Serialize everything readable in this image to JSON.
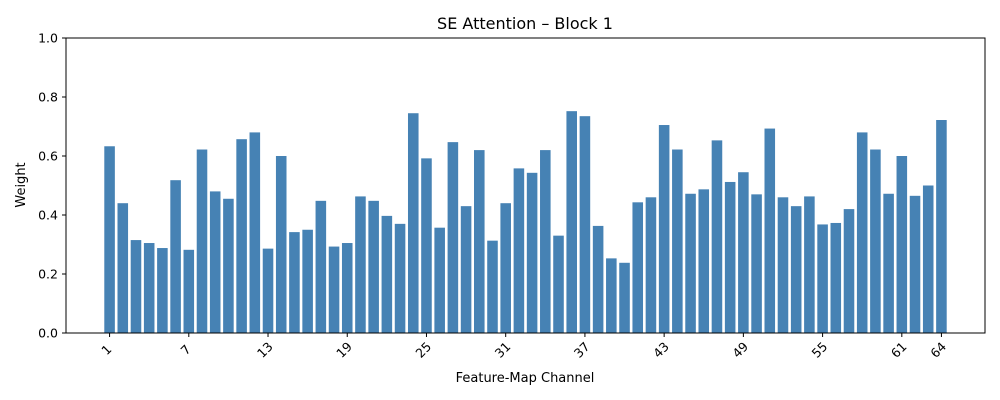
{
  "chart_data": {
    "type": "bar",
    "title": "SE Attention – Block 1",
    "xlabel": "Feature-Map Channel",
    "ylabel": "Weight",
    "ylim": [
      0,
      1.0
    ],
    "yticks": [
      "0.0",
      "0.2",
      "0.4",
      "0.6",
      "0.8",
      "1.0"
    ],
    "xticks": [
      1,
      7,
      13,
      19,
      25,
      31,
      37,
      43,
      49,
      55,
      61,
      64
    ],
    "xtick_rotation": 45,
    "grid": false,
    "bar_color": "#4682b4",
    "x": [
      1,
      2,
      3,
      4,
      5,
      6,
      7,
      8,
      9,
      10,
      11,
      12,
      13,
      14,
      15,
      16,
      17,
      18,
      19,
      20,
      21,
      22,
      23,
      24,
      25,
      26,
      27,
      28,
      29,
      30,
      31,
      32,
      33,
      34,
      35,
      36,
      37,
      38,
      39,
      40,
      41,
      42,
      43,
      44,
      45,
      46,
      47,
      48,
      49,
      50,
      51,
      52,
      53,
      54,
      55,
      56,
      57,
      58,
      59,
      60,
      61,
      62,
      63,
      64
    ],
    "values": [
      0.633,
      0.44,
      0.315,
      0.305,
      0.288,
      0.518,
      0.282,
      0.622,
      0.48,
      0.455,
      0.657,
      0.68,
      0.286,
      0.6,
      0.342,
      0.35,
      0.448,
      0.293,
      0.305,
      0.463,
      0.448,
      0.397,
      0.37,
      0.745,
      0.592,
      0.357,
      0.647,
      0.43,
      0.62,
      0.313,
      0.44,
      0.558,
      0.543,
      0.62,
      0.33,
      0.752,
      0.735,
      0.363,
      0.253,
      0.238,
      0.443,
      0.46,
      0.705,
      0.622,
      0.472,
      0.487,
      0.653,
      0.512,
      0.545,
      0.47,
      0.693,
      0.46,
      0.43,
      0.463,
      0.368,
      0.373,
      0.42,
      0.68,
      0.622,
      0.472,
      0.6,
      0.465,
      0.5,
      0.722
    ]
  }
}
